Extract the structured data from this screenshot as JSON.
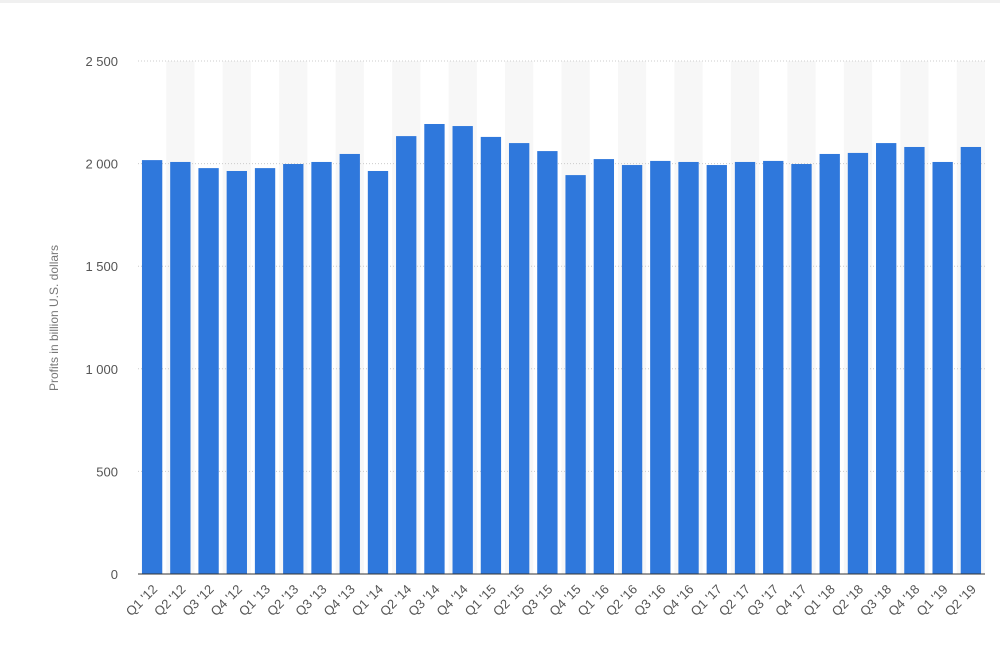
{
  "chart_data": {
    "type": "bar",
    "y_label": "Profits in billion U.S. dollars",
    "categories": [
      "Q1 '12",
      "Q2 '12",
      "Q3 '12",
      "Q4 '12",
      "Q1 '13",
      "Q2 '13",
      "Q3 '13",
      "Q4 '13",
      "Q1 '14",
      "Q2 '14",
      "Q3 '14",
      "Q4 '14",
      "Q1 '15",
      "Q2 '15",
      "Q3 '15",
      "Q4 '15",
      "Q1 '16",
      "Q2 '16",
      "Q3 '16",
      "Q4 '16",
      "Q1 '17",
      "Q2 '17",
      "Q3 '17",
      "Q4 '17",
      "Q1 '18",
      "Q2 '18",
      "Q3 '18",
      "Q4 '18",
      "Q1 '19",
      "Q2 '19"
    ],
    "values": [
      2017,
      2008,
      1978,
      1964,
      1978,
      1998,
      2008,
      2047,
      1964,
      2134,
      2193,
      2183,
      2130,
      2100,
      2061,
      1944,
      2022,
      1993,
      2013,
      2008,
      1993,
      2008,
      2013,
      1998,
      2047,
      2052,
      2100,
      2081,
      2008,
      2081
    ],
    "color": "#2f78dc",
    "ylim": [
      0,
      2500
    ],
    "yticks": [
      0,
      500,
      {
        "value": 1000,
        "label": "1 000"
      },
      {
        "value": 1500,
        "label": "1 500"
      },
      {
        "value": 2000,
        "label": "2 000"
      },
      {
        "value": 2500,
        "label": "2 500"
      }
    ],
    "grid": true
  }
}
